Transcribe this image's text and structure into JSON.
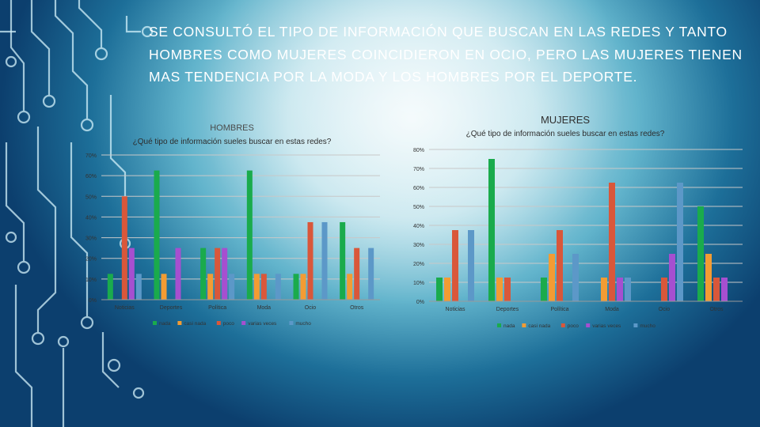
{
  "headline": "SE CONSULTÓ EL TIPO DE INFORMACIÓN QUE BUSCAN EN LAS REDES Y TANTO HOMBRES COMO MUJERES COINCIDIERON EN OCIO, PERO LAS MUJERES TIENEN MAS TENDENCIA POR LA MODA Y LOS HOMBRES POR EL DEPORTE.",
  "colors": {
    "nada": "#1aab4c",
    "casi_nada": "#f39c33",
    "poco": "#d9573a",
    "varias_veces": "#a64fd0",
    "mucho": "#5c98c8"
  },
  "chart_data": [
    {
      "id": "hombres",
      "type": "bar",
      "group_title": "HOMBRES",
      "title": "¿Qué tipo de información sueles buscar en estas redes?",
      "categories": [
        "Noticias",
        "Deportes",
        "Política",
        "Moda",
        "Ocio",
        "Otros"
      ],
      "ylim": [
        0,
        70
      ],
      "yticks": [
        "0%",
        "10%",
        "20%",
        "30%",
        "40%",
        "50%",
        "60%",
        "70%"
      ],
      "grid": true,
      "legend_position": "bottom",
      "series": [
        {
          "name": "nada",
          "color": "#1aab4c",
          "values": [
            12.5,
            62.5,
            25,
            62.5,
            12.5,
            37.5
          ]
        },
        {
          "name": "casi nada",
          "color": "#f39c33",
          "values": [
            0,
            12.5,
            12.5,
            12.5,
            12.5,
            12.5
          ]
        },
        {
          "name": "poco",
          "color": "#d9573a",
          "values": [
            50,
            0,
            25,
            12.5,
            37.5,
            25
          ]
        },
        {
          "name": "varias veces",
          "color": "#a64fd0",
          "values": [
            25,
            25,
            25,
            0,
            0,
            0
          ]
        },
        {
          "name": "mucho",
          "color": "#5c98c8",
          "values": [
            12.5,
            0,
            12.5,
            12.5,
            37.5,
            25
          ]
        }
      ]
    },
    {
      "id": "mujeres",
      "type": "bar",
      "group_title": "MUJERES",
      "title": "¿Qué tipo de información sueles buscar en estas redes?",
      "categories": [
        "Noticias",
        "Deportes",
        "Política",
        "Moda",
        "Ocio",
        "Otros"
      ],
      "ylim": [
        0,
        80
      ],
      "yticks": [
        "0%",
        "10%",
        "20%",
        "30%",
        "40%",
        "50%",
        "60%",
        "70%",
        "80%"
      ],
      "grid": true,
      "legend_position": "bottom",
      "series": [
        {
          "name": "nada",
          "color": "#1aab4c",
          "values": [
            12.5,
            75,
            12.5,
            0,
            0,
            50
          ]
        },
        {
          "name": "casi nada",
          "color": "#f39c33",
          "values": [
            12.5,
            12.5,
            25,
            12.5,
            0,
            25
          ]
        },
        {
          "name": "poco",
          "color": "#d9573a",
          "values": [
            37.5,
            12.5,
            37.5,
            62.5,
            12.5,
            12.5
          ]
        },
        {
          "name": "varias veces",
          "color": "#a64fd0",
          "values": [
            0,
            0,
            0,
            12.5,
            25,
            12.5
          ]
        },
        {
          "name": "mucho",
          "color": "#5c98c8",
          "values": [
            37.5,
            0,
            25,
            12.5,
            62.5,
            0
          ]
        }
      ]
    }
  ]
}
